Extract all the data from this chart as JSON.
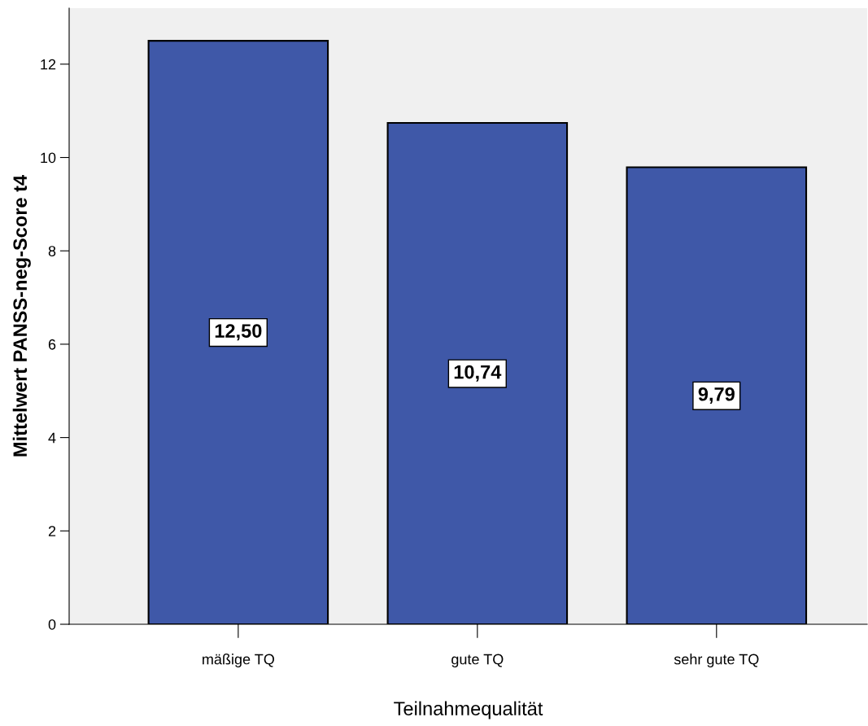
{
  "chart_data": {
    "type": "bar",
    "xlabel": "Teilnahmequalität",
    "ylabel": "Mittelwert PANSS-neg-Score t4",
    "categories": [
      "mäßige TQ",
      "gute TQ",
      "sehr gute TQ"
    ],
    "values": [
      12.5,
      10.74,
      9.79
    ],
    "value_labels": [
      "12,50",
      "10,74",
      "9,79"
    ],
    "color": "#3f58a8",
    "ylim": [
      0,
      13.2
    ],
    "yticks": [
      0,
      2,
      4,
      6,
      8,
      10,
      12
    ],
    "grid": false,
    "legend": false
  }
}
